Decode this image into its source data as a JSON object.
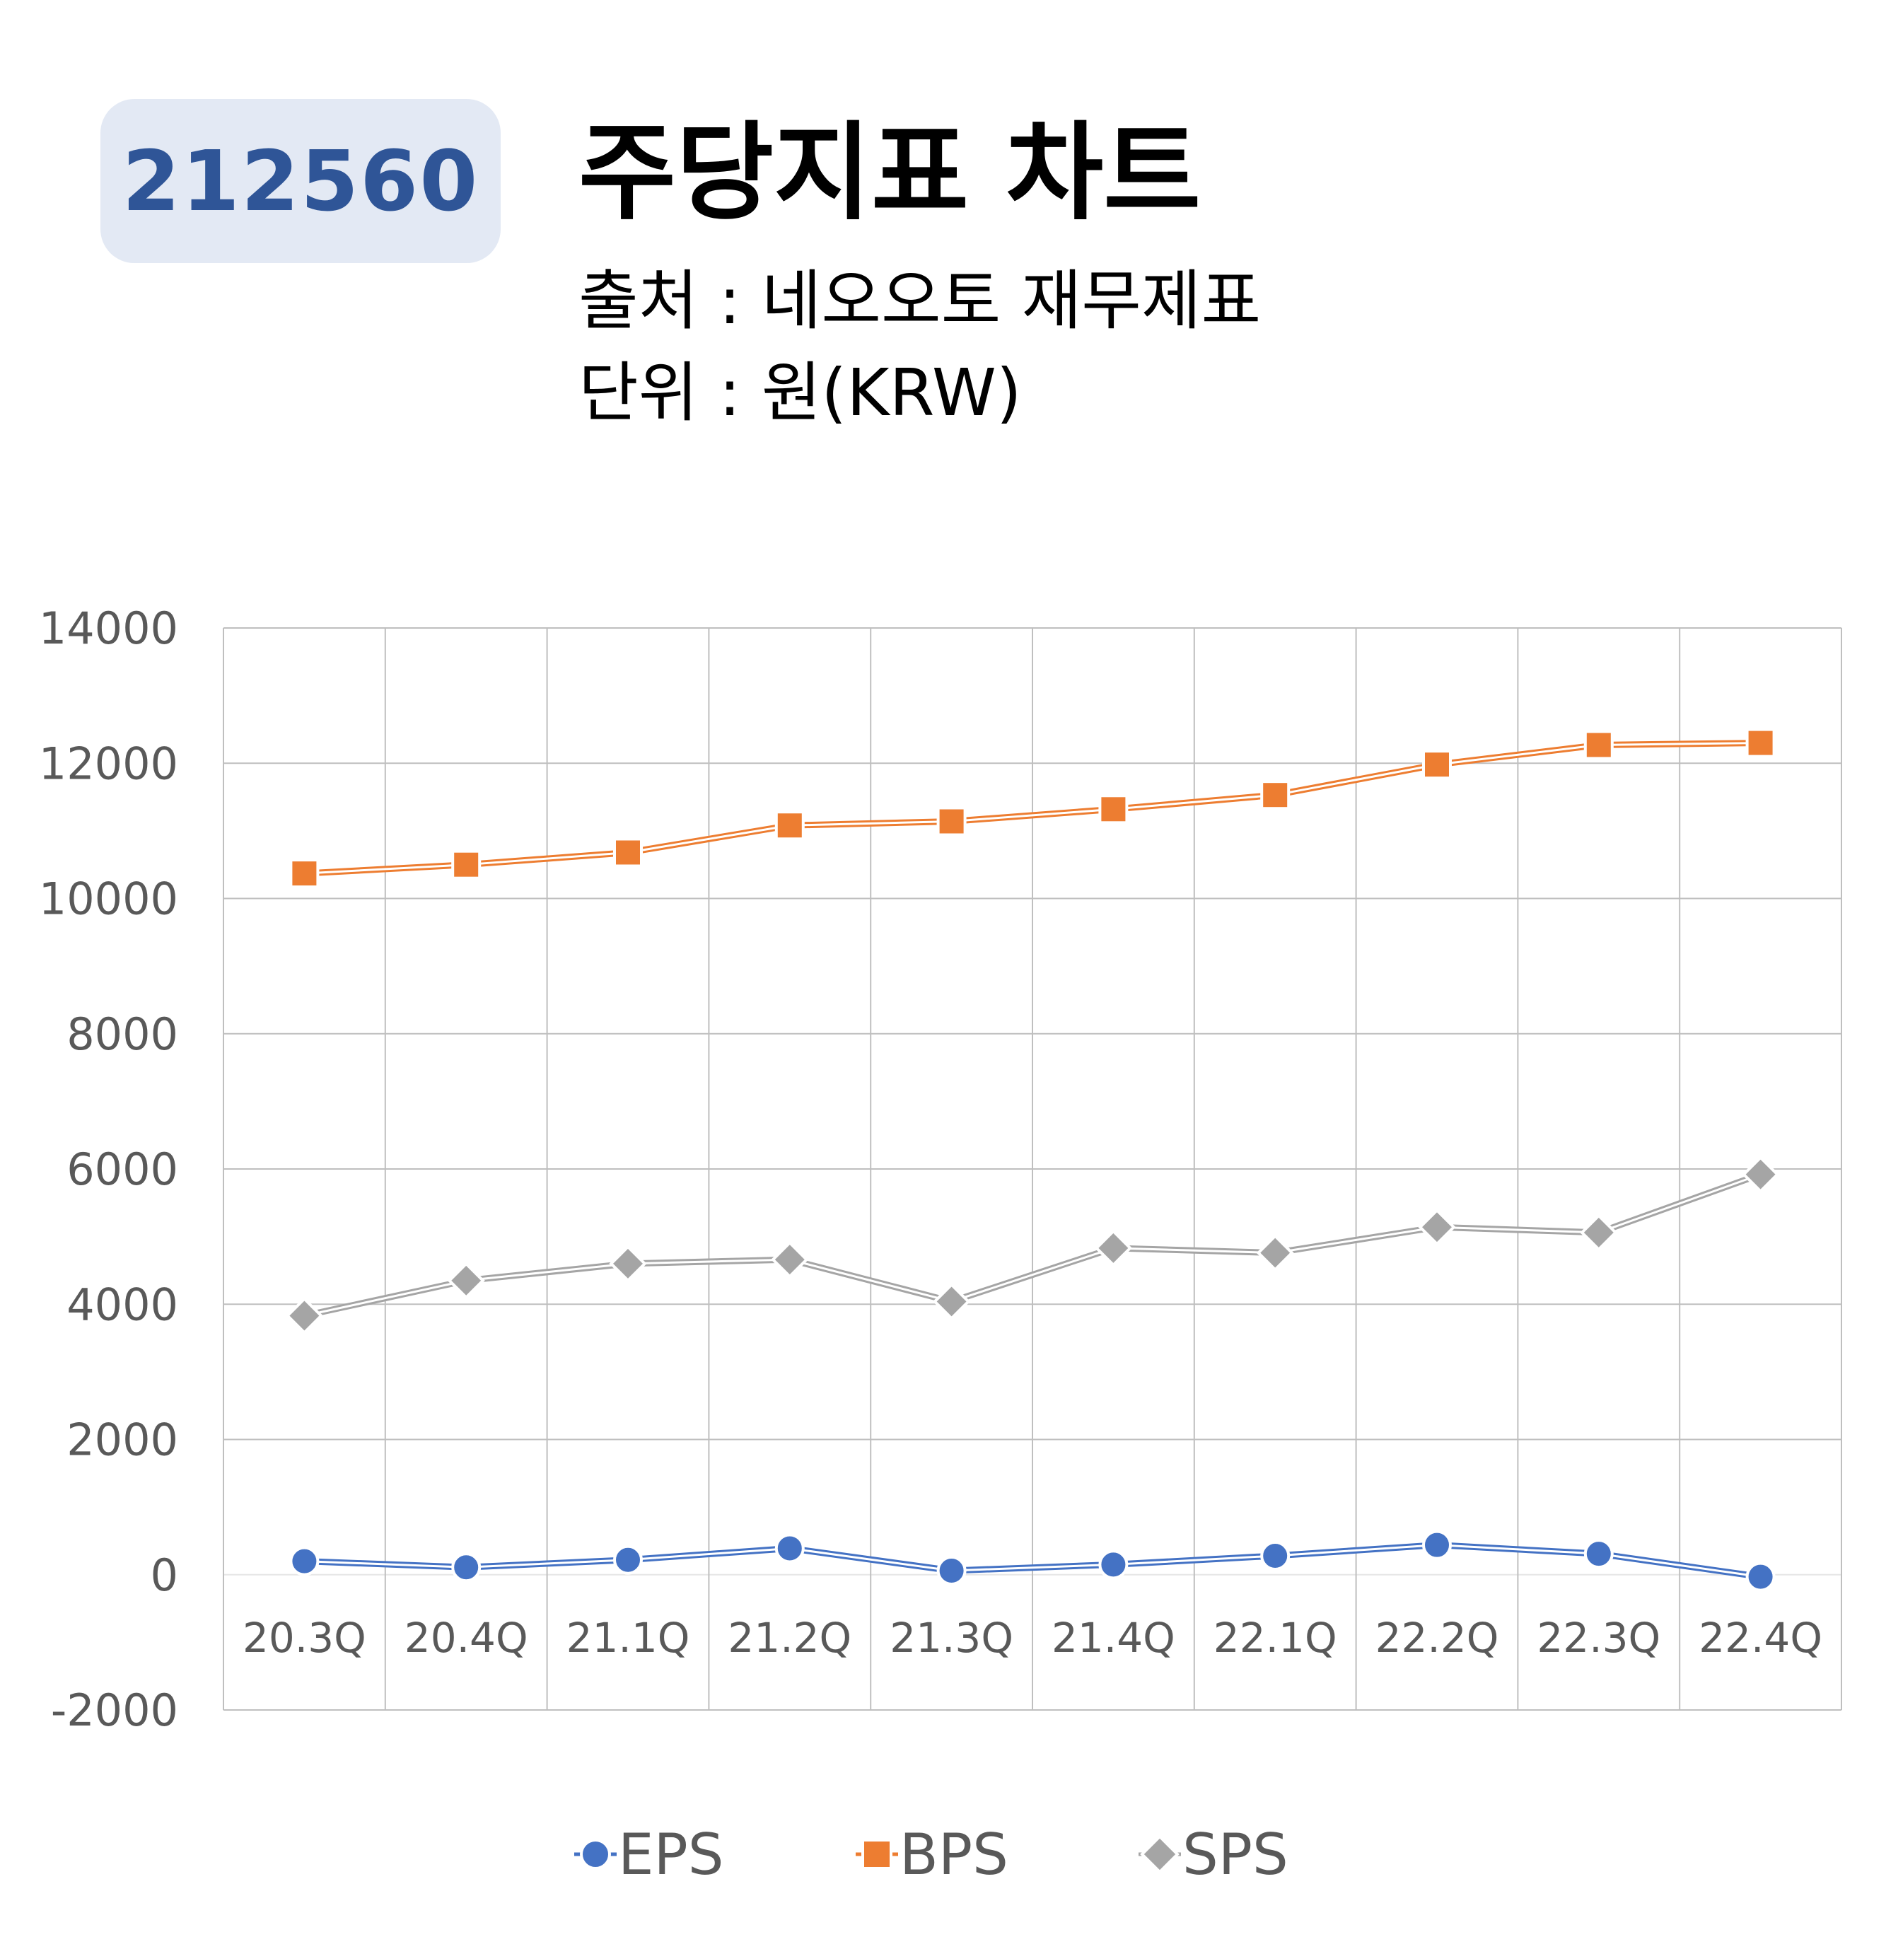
{
  "header": {
    "code": "212560",
    "title": "주당지표 차트",
    "source": "출처 : 네오오토 재무제표",
    "unit": "단위 : 원(KRW)"
  },
  "colors": {
    "badge_bg": "#e3e9f4",
    "badge_text": "#2f5597",
    "EPS": "#4472c4",
    "BPS": "#ed7d31",
    "SPS": "#a5a5a5",
    "grid": "#bfbfbf"
  },
  "chart_data": {
    "type": "line",
    "categories": [
      "20.3Q",
      "20.4Q",
      "21.1Q",
      "21.2Q",
      "21.3Q",
      "21.4Q",
      "22.1Q",
      "22.2Q",
      "22.3Q",
      "22.4Q"
    ],
    "series": [
      {
        "name": "EPS",
        "marker": "circle",
        "values": [
          200,
          110,
          220,
          390,
          60,
          150,
          280,
          440,
          310,
          -30
        ]
      },
      {
        "name": "BPS",
        "marker": "square",
        "values": [
          10370,
          10500,
          10680,
          11080,
          11140,
          11320,
          11530,
          11980,
          12270,
          12300
        ]
      },
      {
        "name": "SPS",
        "marker": "diamond",
        "values": [
          3830,
          4350,
          4600,
          4660,
          4040,
          4830,
          4760,
          5140,
          5060,
          5920
        ]
      }
    ],
    "ylim": [
      -2000,
      14000
    ],
    "yticks": [
      "14000",
      "12000",
      "10000",
      "8000",
      "6000",
      "4000",
      "2000",
      "0",
      "-2000"
    ],
    "xlabel": "",
    "ylabel": "",
    "grid": true,
    "legend": "bottom"
  }
}
